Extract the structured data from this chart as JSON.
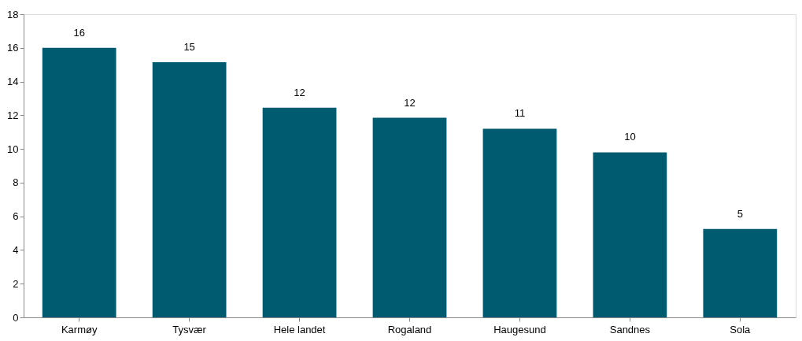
{
  "chart_data": {
    "type": "bar",
    "categories": [
      "Karmøy",
      "Tysvær",
      "Hele landet",
      "Rogaland",
      "Haugesund",
      "Sandnes",
      "Sola"
    ],
    "values": [
      16.0,
      15.15,
      12.45,
      11.85,
      11.2,
      9.8,
      5.25
    ],
    "value_labels": [
      "16",
      "15",
      "12",
      "12",
      "11",
      "10",
      "5"
    ],
    "color": "#005a70",
    "ylim": [
      0,
      18
    ],
    "yticks": [
      0,
      2,
      4,
      6,
      8,
      10,
      12,
      14,
      16,
      18
    ],
    "grid": false
  }
}
